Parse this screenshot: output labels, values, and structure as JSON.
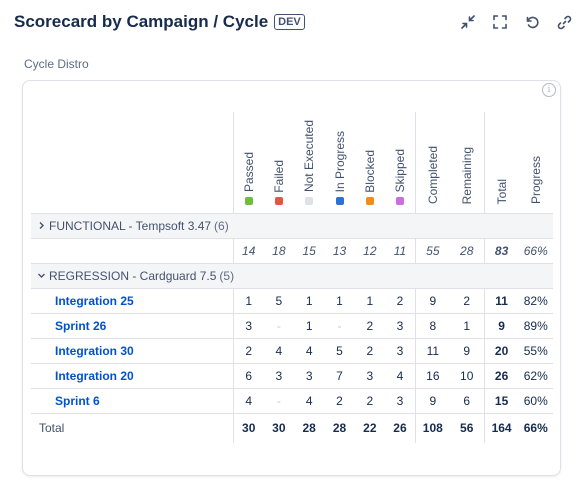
{
  "header": {
    "title": "Scorecard by Campaign / Cycle",
    "badge": "DEV"
  },
  "subtitle": "Cycle Distro",
  "columns": [
    {
      "label": "Passed",
      "color": "#6abf40"
    },
    {
      "label": "Failed",
      "color": "#e8553e"
    },
    {
      "label": "Not Executed",
      "color": "#dfe1e6"
    },
    {
      "label": "In Progress",
      "color": "#2f6fd6"
    },
    {
      "label": "Blocked",
      "color": "#f18c1f"
    },
    {
      "label": "Skipped",
      "color": "#c86ee0"
    },
    {
      "label": "Completed"
    },
    {
      "label": "Remaining"
    },
    {
      "label": "Total"
    },
    {
      "label": "Progress"
    }
  ],
  "groups": [
    {
      "name": "FUNCTIONAL - Tempsoft 3.47",
      "count": "(6)",
      "expanded": false,
      "subtotal": [
        "14",
        "18",
        "15",
        "13",
        "12",
        "11",
        "55",
        "28",
        "83",
        "66%"
      ]
    },
    {
      "name": "REGRESSION - Cardguard 7.5",
      "count": "(5)",
      "expanded": true,
      "rows": [
        {
          "name": "Integration 25",
          "values": [
            "1",
            "5",
            "1",
            "1",
            "1",
            "2",
            "9",
            "2",
            "11",
            "82%"
          ]
        },
        {
          "name": "Sprint 26",
          "values": [
            "3",
            "-",
            "1",
            "-",
            "2",
            "3",
            "8",
            "1",
            "9",
            "89%"
          ]
        },
        {
          "name": "Integration 30",
          "values": [
            "2",
            "4",
            "4",
            "5",
            "2",
            "3",
            "11",
            "9",
            "20",
            "55%"
          ]
        },
        {
          "name": "Integration 20",
          "values": [
            "6",
            "3",
            "3",
            "7",
            "3",
            "4",
            "16",
            "10",
            "26",
            "62%"
          ]
        },
        {
          "name": "Sprint 6",
          "values": [
            "4",
            "-",
            "4",
            "2",
            "2",
            "3",
            "9",
            "6",
            "15",
            "60%"
          ]
        }
      ]
    }
  ],
  "totals": {
    "label": "Total",
    "values": [
      "30",
      "30",
      "28",
      "28",
      "22",
      "26",
      "108",
      "56",
      "164",
      "66%"
    ]
  }
}
